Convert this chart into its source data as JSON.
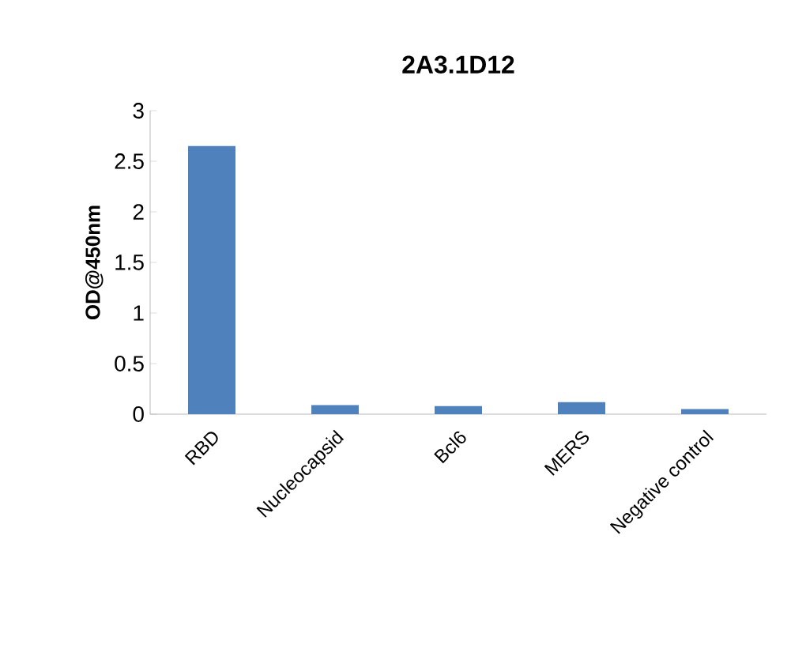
{
  "chart_data": {
    "type": "bar",
    "title": "2A3.1D12",
    "ylabel": "OD@450nm",
    "categories": [
      "RBD",
      "Nucleocapsid",
      "Bcl6",
      "MERS",
      "Negative control"
    ],
    "values": [
      2.65,
      0.09,
      0.08,
      0.12,
      0.05
    ],
    "color": "#4f81bd",
    "ylim": [
      0,
      3
    ],
    "yticks": [
      0,
      0.5,
      1,
      1.5,
      2,
      2.5,
      3
    ]
  }
}
